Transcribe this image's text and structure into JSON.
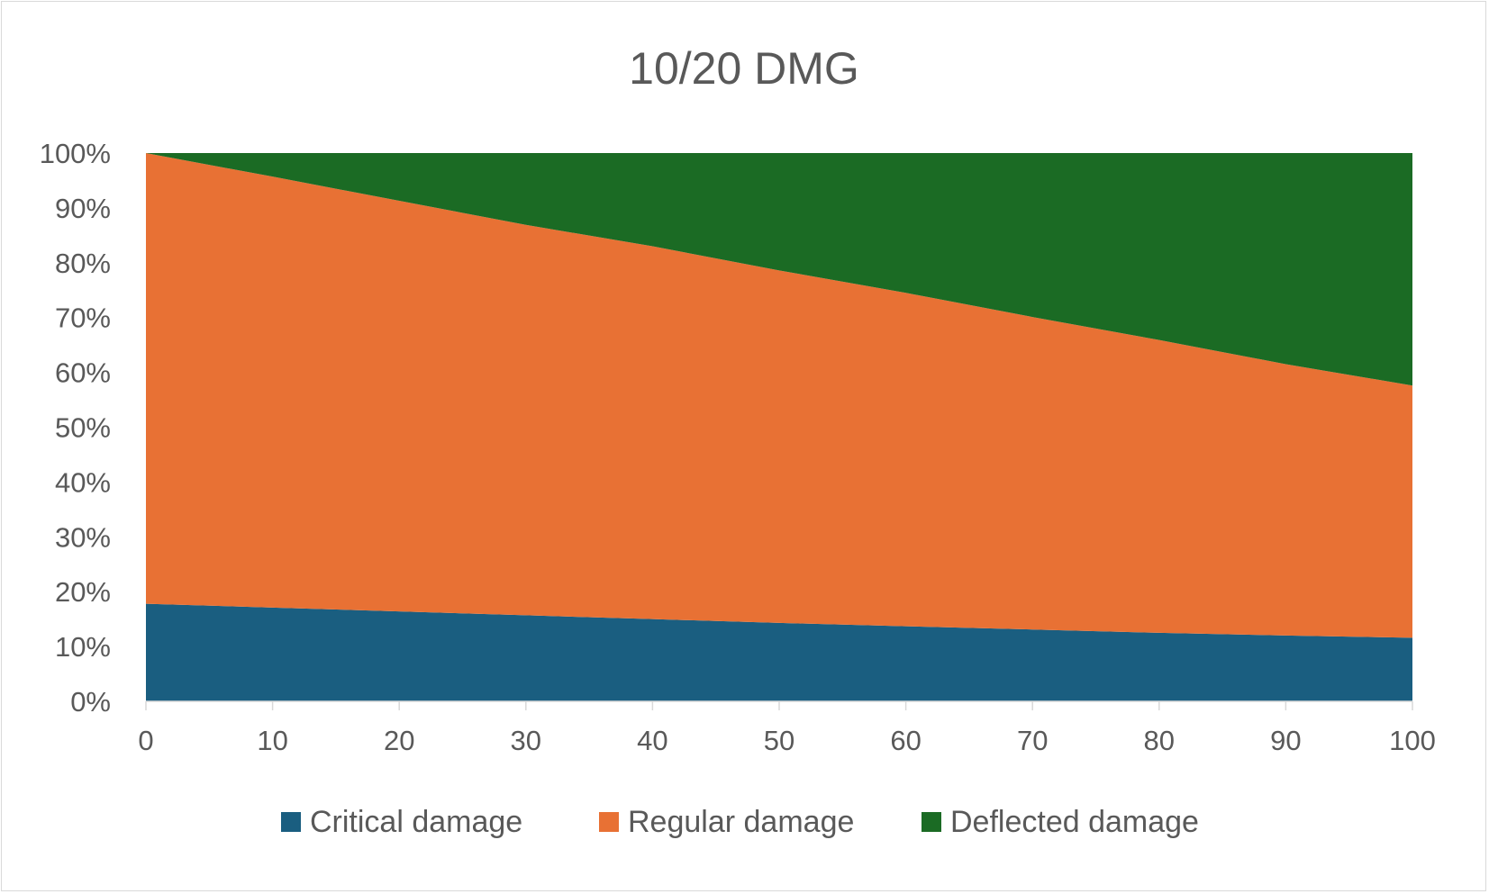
{
  "chart_data": {
    "type": "area",
    "stacked": "percent",
    "title": "10/20 DMG",
    "xlabel": "",
    "ylabel": "",
    "x": [
      0,
      10,
      20,
      30,
      40,
      50,
      60,
      70,
      80,
      90,
      100
    ],
    "x_ticks": [
      "0",
      "10",
      "20",
      "30",
      "40",
      "50",
      "60",
      "70",
      "80",
      "90",
      "100"
    ],
    "y_ticks": [
      "0%",
      "10%",
      "20%",
      "30%",
      "40%",
      "50%",
      "60%",
      "70%",
      "80%",
      "90%",
      "100%"
    ],
    "ylim": [
      0,
      100
    ],
    "xlim": [
      0,
      100
    ],
    "grid": false,
    "legend_position": "bottom",
    "series": [
      {
        "name": "Critical damage",
        "color": "#1a5e80",
        "values": [
          17.8,
          17.1,
          16.4,
          15.7,
          15.0,
          14.3,
          13.7,
          13.1,
          12.5,
          12.0,
          11.6
        ]
      },
      {
        "name": "Regular damage",
        "color": "#e87134",
        "values": [
          82.2,
          78.6,
          74.9,
          71.2,
          68.0,
          64.3,
          60.8,
          57.0,
          53.4,
          49.5,
          46.0
        ]
      },
      {
        "name": "Deflected damage",
        "color": "#1b6b24",
        "values": [
          0.0,
          4.3,
          8.7,
          13.1,
          17.0,
          21.4,
          25.5,
          29.9,
          34.1,
          38.5,
          42.4
        ]
      }
    ]
  }
}
